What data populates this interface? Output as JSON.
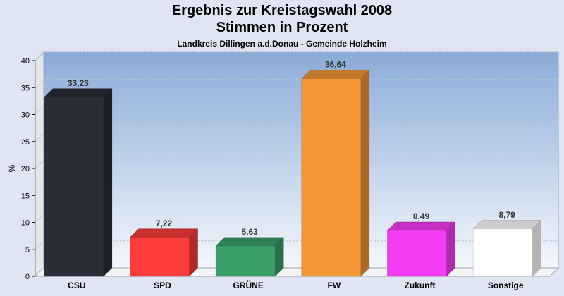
{
  "chart_data": {
    "type": "bar",
    "title": "Ergebnis zur Kreistagswahl 2008",
    "title2": "Stimmen in Prozent",
    "subtitle": "Landkreis Dillingen a.d.Donau - Gemeinde Holzheim",
    "xlabel": "",
    "ylabel": "%",
    "ylim": [
      0,
      40
    ],
    "yticks": [
      0,
      5,
      10,
      15,
      20,
      25,
      30,
      35,
      40
    ],
    "grid": true,
    "categories": [
      "CSU",
      "SPD",
      "GRÜNE",
      "FW",
      "Zukunft",
      "Sonstige"
    ],
    "values": [
      33.23,
      7.22,
      5.63,
      36.64,
      8.49,
      8.79
    ],
    "value_labels": [
      "33,23",
      "7,22",
      "5,63",
      "36,64",
      "8,49",
      "8,79"
    ],
    "colors": [
      "#2a2e38",
      "#fd3c3c",
      "#3a9f68",
      "#f59637",
      "#f53cf5",
      "#ffffff"
    ]
  }
}
